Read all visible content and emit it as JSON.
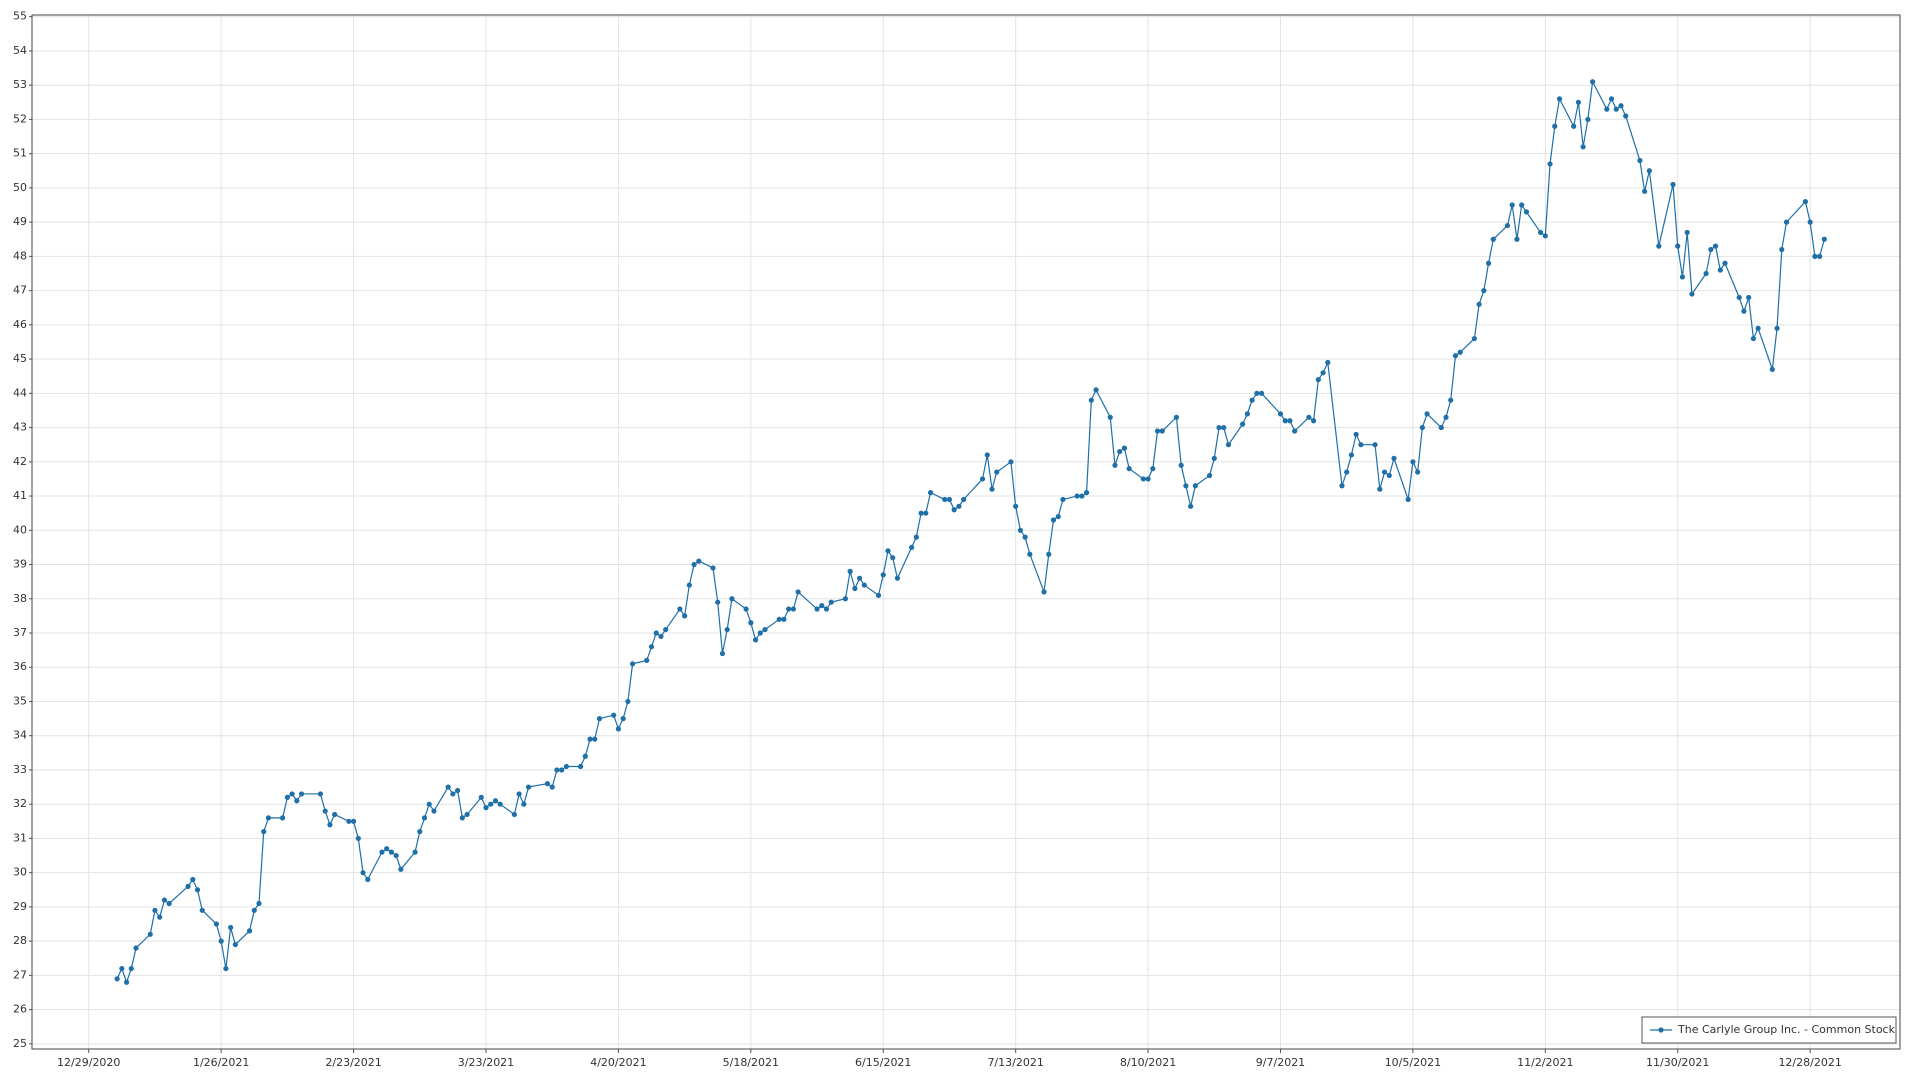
{
  "chart_data": {
    "type": "line",
    "x": [
      "1/4/2021",
      "1/5/2021",
      "1/6/2021",
      "1/7/2021",
      "1/8/2021",
      "1/11/2021",
      "1/12/2021",
      "1/13/2021",
      "1/14/2021",
      "1/15/2021",
      "1/19/2021",
      "1/20/2021",
      "1/21/2021",
      "1/22/2021",
      "1/25/2021",
      "1/26/2021",
      "1/27/2021",
      "1/28/2021",
      "1/29/2021",
      "2/1/2021",
      "2/2/2021",
      "2/3/2021",
      "2/4/2021",
      "2/5/2021",
      "2/8/2021",
      "2/9/2021",
      "2/10/2021",
      "2/11/2021",
      "2/12/2021",
      "2/16/2021",
      "2/17/2021",
      "2/18/2021",
      "2/19/2021",
      "2/22/2021",
      "2/23/2021",
      "2/24/2021",
      "2/25/2021",
      "2/26/2021",
      "3/1/2021",
      "3/2/2021",
      "3/3/2021",
      "3/4/2021",
      "3/5/2021",
      "3/8/2021",
      "3/9/2021",
      "3/10/2021",
      "3/11/2021",
      "3/12/2021",
      "3/15/2021",
      "3/16/2021",
      "3/17/2021",
      "3/18/2021",
      "3/19/2021",
      "3/22/2021",
      "3/23/2021",
      "3/24/2021",
      "3/25/2021",
      "3/26/2021",
      "3/29/2021",
      "3/30/2021",
      "3/31/2021",
      "4/1/2021",
      "4/5/2021",
      "4/6/2021",
      "4/7/2021",
      "4/8/2021",
      "4/9/2021",
      "4/12/2021",
      "4/13/2021",
      "4/14/2021",
      "4/15/2021",
      "4/16/2021",
      "4/19/2021",
      "4/20/2021",
      "4/21/2021",
      "4/22/2021",
      "4/23/2021",
      "4/26/2021",
      "4/27/2021",
      "4/28/2021",
      "4/29/2021",
      "4/30/2021",
      "5/3/2021",
      "5/4/2021",
      "5/5/2021",
      "5/6/2021",
      "5/7/2021",
      "5/10/2021",
      "5/11/2021",
      "5/12/2021",
      "5/13/2021",
      "5/14/2021",
      "5/17/2021",
      "5/18/2021",
      "5/19/2021",
      "5/20/2021",
      "5/21/2021",
      "5/24/2021",
      "5/25/2021",
      "5/26/2021",
      "5/27/2021",
      "5/28/2021",
      "6/1/2021",
      "6/2/2021",
      "6/3/2021",
      "6/4/2021",
      "6/7/2021",
      "6/8/2021",
      "6/9/2021",
      "6/10/2021",
      "6/11/2021",
      "6/14/2021",
      "6/15/2021",
      "6/16/2021",
      "6/17/2021",
      "6/18/2021",
      "6/21/2021",
      "6/22/2021",
      "6/23/2021",
      "6/24/2021",
      "6/25/2021",
      "6/28/2021",
      "6/29/2021",
      "6/30/2021",
      "7/1/2021",
      "7/2/2021",
      "7/6/2021",
      "7/7/2021",
      "7/8/2021",
      "7/9/2021",
      "7/12/2021",
      "7/13/2021",
      "7/14/2021",
      "7/15/2021",
      "7/16/2021",
      "7/19/2021",
      "7/20/2021",
      "7/21/2021",
      "7/22/2021",
      "7/23/2021",
      "7/26/2021",
      "7/27/2021",
      "7/28/2021",
      "7/29/2021",
      "7/30/2021",
      "8/2/2021",
      "8/3/2021",
      "8/4/2021",
      "8/5/2021",
      "8/6/2021",
      "8/9/2021",
      "8/10/2021",
      "8/11/2021",
      "8/12/2021",
      "8/13/2021",
      "8/16/2021",
      "8/17/2021",
      "8/18/2021",
      "8/19/2021",
      "8/20/2021",
      "8/23/2021",
      "8/24/2021",
      "8/25/2021",
      "8/26/2021",
      "8/27/2021",
      "8/30/2021",
      "8/31/2021",
      "9/1/2021",
      "9/2/2021",
      "9/3/2021",
      "9/7/2021",
      "9/8/2021",
      "9/9/2021",
      "9/10/2021",
      "9/13/2021",
      "9/14/2021",
      "9/15/2021",
      "9/16/2021",
      "9/17/2021",
      "9/20/2021",
      "9/21/2021",
      "9/22/2021",
      "9/23/2021",
      "9/24/2021",
      "9/27/2021",
      "9/28/2021",
      "9/29/2021",
      "9/30/2021",
      "10/1/2021",
      "10/4/2021",
      "10/5/2021",
      "10/6/2021",
      "10/7/2021",
      "10/8/2021",
      "10/11/2021",
      "10/12/2021",
      "10/13/2021",
      "10/14/2021",
      "10/15/2021",
      "10/18/2021",
      "10/19/2021",
      "10/20/2021",
      "10/21/2021",
      "10/22/2021",
      "10/25/2021",
      "10/26/2021",
      "10/27/2021",
      "10/28/2021",
      "10/29/2021",
      "11/1/2021",
      "11/2/2021",
      "11/3/2021",
      "11/4/2021",
      "11/5/2021",
      "11/8/2021",
      "11/9/2021",
      "11/10/2021",
      "11/11/2021",
      "11/12/2021",
      "11/15/2021",
      "11/16/2021",
      "11/17/2021",
      "11/18/2021",
      "11/19/2021",
      "11/22/2021",
      "11/23/2021",
      "11/24/2021",
      "11/26/2021",
      "11/29/2021",
      "11/30/2021",
      "12/1/2021",
      "12/2/2021",
      "12/3/2021",
      "12/6/2021",
      "12/7/2021",
      "12/8/2021",
      "12/9/2021",
      "12/10/2021",
      "12/13/2021",
      "12/14/2021",
      "12/15/2021",
      "12/16/2021",
      "12/17/2021",
      "12/20/2021",
      "12/21/2021",
      "12/22/2021",
      "12/23/2021",
      "12/27/2021",
      "12/28/2021",
      "12/29/2021",
      "12/30/2021",
      "12/31/2021"
    ],
    "series": [
      {
        "name": "The Carlyle Group Inc. - Common Stock",
        "color": "#1f6fa8",
        "values": [
          26.9,
          27.2,
          26.8,
          27.2,
          27.8,
          28.2,
          28.9,
          28.7,
          29.2,
          29.1,
          29.6,
          29.8,
          29.5,
          28.9,
          28.5,
          28.0,
          27.2,
          28.4,
          27.9,
          28.3,
          28.9,
          29.1,
          31.2,
          31.6,
          31.6,
          32.2,
          32.3,
          32.1,
          32.3,
          32.3,
          31.8,
          31.4,
          31.7,
          31.5,
          31.5,
          31.0,
          30.0,
          29.8,
          30.6,
          30.7,
          30.6,
          30.5,
          30.1,
          30.6,
          31.2,
          31.6,
          32.0,
          31.8,
          32.5,
          32.3,
          32.4,
          31.6,
          31.7,
          32.2,
          31.9,
          32.0,
          32.1,
          32.0,
          31.7,
          32.3,
          32.0,
          32.5,
          32.6,
          32.5,
          33.0,
          33.0,
          33.1,
          33.1,
          33.4,
          33.9,
          33.9,
          34.5,
          34.6,
          34.2,
          34.5,
          35.0,
          36.1,
          36.2,
          36.6,
          37.0,
          36.9,
          37.1,
          37.7,
          37.5,
          38.4,
          39.0,
          39.1,
          38.9,
          37.9,
          36.4,
          37.1,
          38.0,
          37.7,
          37.3,
          36.8,
          37.0,
          37.1,
          37.4,
          37.4,
          37.7,
          37.7,
          38.2,
          37.7,
          37.8,
          37.7,
          37.9,
          38.0,
          38.8,
          38.3,
          38.6,
          38.4,
          38.1,
          38.7,
          39.4,
          39.2,
          38.6,
          39.5,
          39.8,
          40.5,
          40.5,
          41.1,
          40.9,
          40.9,
          40.6,
          40.7,
          40.9,
          41.5,
          42.2,
          41.2,
          41.7,
          42.0,
          40.7,
          40.0,
          39.8,
          39.3,
          38.2,
          39.3,
          40.3,
          40.4,
          40.9,
          41.0,
          41.0,
          41.1,
          43.8,
          44.1,
          43.3,
          41.9,
          42.3,
          42.4,
          41.8,
          41.5,
          41.5,
          41.8,
          42.9,
          42.9,
          43.3,
          41.9,
          41.3,
          40.7,
          41.3,
          41.6,
          42.1,
          43.0,
          43.0,
          42.5,
          43.1,
          43.4,
          43.8,
          44.0,
          44.0,
          43.4,
          43.2,
          43.2,
          42.9,
          43.3,
          43.2,
          44.4,
          44.6,
          44.9,
          41.3,
          41.7,
          42.2,
          42.8,
          42.5,
          42.5,
          41.2,
          41.7,
          41.6,
          42.1,
          40.9,
          42.0,
          41.7,
          43.0,
          43.4,
          43.0,
          43.3,
          43.8,
          45.1,
          45.2,
          45.6,
          46.6,
          47.0,
          47.8,
          48.5,
          48.9,
          49.5,
          48.5,
          49.5,
          49.3,
          48.7,
          48.6,
          50.7,
          51.8,
          52.6,
          51.8,
          52.5,
          51.2,
          52.0,
          53.1,
          52.3,
          52.6,
          52.3,
          52.4,
          52.1,
          50.8,
          49.9,
          50.5,
          48.3,
          50.1,
          48.3,
          47.4,
          48.7,
          46.9,
          47.5,
          48.2,
          48.3,
          47.6,
          47.8,
          46.8,
          46.4,
          46.8,
          45.6,
          45.9,
          44.7,
          45.9,
          48.2,
          49.0,
          49.6,
          49.0,
          48.0,
          48.0,
          48.5
        ]
      }
    ],
    "xlim": [
      "12/17/2020",
      "1/16/2022"
    ],
    "xticks": [
      "12/29/2020",
      "1/26/2021",
      "2/23/2021",
      "3/23/2021",
      "4/20/2021",
      "5/18/2021",
      "6/15/2021",
      "7/13/2021",
      "8/10/2021",
      "9/7/2021",
      "10/5/2021",
      "11/2/2021",
      "11/30/2021",
      "12/28/2021"
    ],
    "ylim": [
      24.85,
      55.05
    ],
    "yticks": [
      25,
      26,
      27,
      28,
      29,
      30,
      31,
      32,
      33,
      34,
      35,
      36,
      37,
      38,
      39,
      40,
      41,
      42,
      43,
      44,
      45,
      46,
      47,
      48,
      49,
      50,
      51,
      52,
      53,
      54,
      55
    ],
    "grid": true,
    "markers": true,
    "legend": "lower right"
  }
}
